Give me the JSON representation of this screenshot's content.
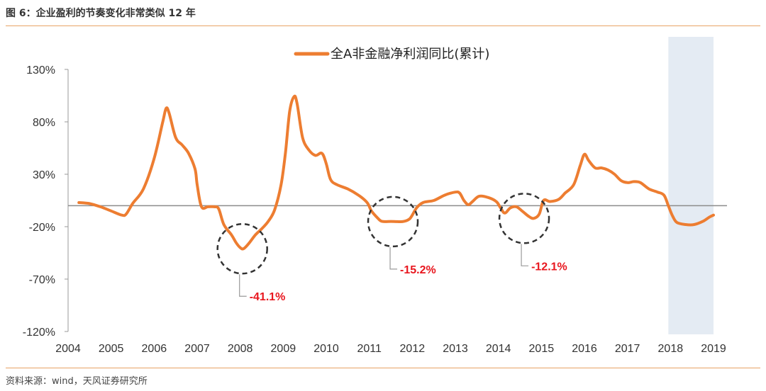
{
  "header": {
    "figure_title": "图 6：企业盈利的节奏变化非常类似 12 年"
  },
  "footer": {
    "source": "资料来源：wind，天风证券研究所"
  },
  "colors": {
    "line": "#ED7D31",
    "shade": "#E4EBF3",
    "callout": "#E8161E",
    "rule": "#E8A365",
    "circle": "#333333"
  },
  "chart_data": {
    "type": "line",
    "title": "",
    "xlabel": "",
    "ylabel": "",
    "legend": {
      "placement": "top-center"
    },
    "grid": false,
    "x_ticks": [
      "2004",
      "2005",
      "2006",
      "2007",
      "2008",
      "2009",
      "2010",
      "2011",
      "2012",
      "2013",
      "2014",
      "2015",
      "2016",
      "2017",
      "2018",
      "2019"
    ],
    "y_ticks": [
      "130%",
      "80%",
      "30%",
      "-20%",
      "-70%",
      "-120%"
    ],
    "xlim": [
      2004,
      2019
    ],
    "ylim": [
      -120,
      130
    ],
    "shaded_period": [
      2018,
      2019
    ],
    "series": [
      {
        "name": "全A非金融净利润同比(累计)",
        "points": [
          [
            2004.25,
            3
          ],
          [
            2004.5,
            2
          ],
          [
            2004.75,
            -1
          ],
          [
            2005.0,
            -5
          ],
          [
            2005.25,
            -9
          ],
          [
            2005.35,
            -8
          ],
          [
            2005.5,
            2
          ],
          [
            2005.75,
            16
          ],
          [
            2006.0,
            45
          ],
          [
            2006.2,
            80
          ],
          [
            2006.28,
            93
          ],
          [
            2006.35,
            88
          ],
          [
            2006.5,
            65
          ],
          [
            2006.65,
            58
          ],
          [
            2006.8,
            50
          ],
          [
            2006.95,
            35
          ],
          [
            2007.0,
            20
          ],
          [
            2007.1,
            -1
          ],
          [
            2007.25,
            -1
          ],
          [
            2007.4,
            -1
          ],
          [
            2007.5,
            -3
          ],
          [
            2007.62,
            -18
          ],
          [
            2007.8,
            -28
          ],
          [
            2007.9,
            -35
          ],
          [
            2008.0,
            -40
          ],
          [
            2008.08,
            -41
          ],
          [
            2008.2,
            -36
          ],
          [
            2008.35,
            -28
          ],
          [
            2008.5,
            -22
          ],
          [
            2008.65,
            -15
          ],
          [
            2008.8,
            -4
          ],
          [
            2008.95,
            20
          ],
          [
            2009.05,
            50
          ],
          [
            2009.15,
            90
          ],
          [
            2009.25,
            104
          ],
          [
            2009.32,
            98
          ],
          [
            2009.45,
            65
          ],
          [
            2009.6,
            53
          ],
          [
            2009.75,
            48
          ],
          [
            2009.9,
            50
          ],
          [
            2010.0,
            40
          ],
          [
            2010.1,
            25
          ],
          [
            2010.25,
            20
          ],
          [
            2010.5,
            16
          ],
          [
            2010.75,
            10
          ],
          [
            2010.95,
            3
          ],
          [
            2011.05,
            -5
          ],
          [
            2011.2,
            -12
          ],
          [
            2011.3,
            -15
          ],
          [
            2011.5,
            -15
          ],
          [
            2011.65,
            -15.2
          ],
          [
            2011.8,
            -15
          ],
          [
            2011.95,
            -12
          ],
          [
            2012.1,
            -2
          ],
          [
            2012.25,
            3
          ],
          [
            2012.5,
            5
          ],
          [
            2012.75,
            10
          ],
          [
            2013.0,
            13
          ],
          [
            2013.1,
            12
          ],
          [
            2013.2,
            5
          ],
          [
            2013.3,
            1
          ],
          [
            2013.4,
            4
          ],
          [
            2013.55,
            9
          ],
          [
            2013.75,
            8
          ],
          [
            2013.95,
            4
          ],
          [
            2014.05,
            -2
          ],
          [
            2014.15,
            -7
          ],
          [
            2014.28,
            -2
          ],
          [
            2014.42,
            -1
          ],
          [
            2014.55,
            -5
          ],
          [
            2014.7,
            -10
          ],
          [
            2014.82,
            -12.1
          ],
          [
            2014.95,
            -8
          ],
          [
            2015.05,
            5
          ],
          [
            2015.2,
            4
          ],
          [
            2015.4,
            6
          ],
          [
            2015.55,
            12
          ],
          [
            2015.75,
            20
          ],
          [
            2015.9,
            38
          ],
          [
            2016.0,
            49
          ],
          [
            2016.1,
            43
          ],
          [
            2016.25,
            36
          ],
          [
            2016.4,
            36
          ],
          [
            2016.55,
            34
          ],
          [
            2016.7,
            30
          ],
          [
            2016.85,
            24
          ],
          [
            2017.0,
            22
          ],
          [
            2017.15,
            23
          ],
          [
            2017.3,
            22
          ],
          [
            2017.5,
            16
          ],
          [
            2017.7,
            13
          ],
          [
            2017.85,
            10
          ],
          [
            2017.95,
            0
          ],
          [
            2018.05,
            -10
          ],
          [
            2018.15,
            -16
          ],
          [
            2018.35,
            -18
          ],
          [
            2018.55,
            -18
          ],
          [
            2018.75,
            -15
          ],
          [
            2018.9,
            -11
          ],
          [
            2019.0,
            -9
          ]
        ]
      }
    ],
    "annotations": [
      {
        "label": "-41.1%",
        "x": 2008.05,
        "y": -41.1
      },
      {
        "label": "-15.2%",
        "x": 2011.55,
        "y": -15.2
      },
      {
        "label": "-12.1%",
        "x": 2014.6,
        "y": -12.1
      }
    ]
  }
}
